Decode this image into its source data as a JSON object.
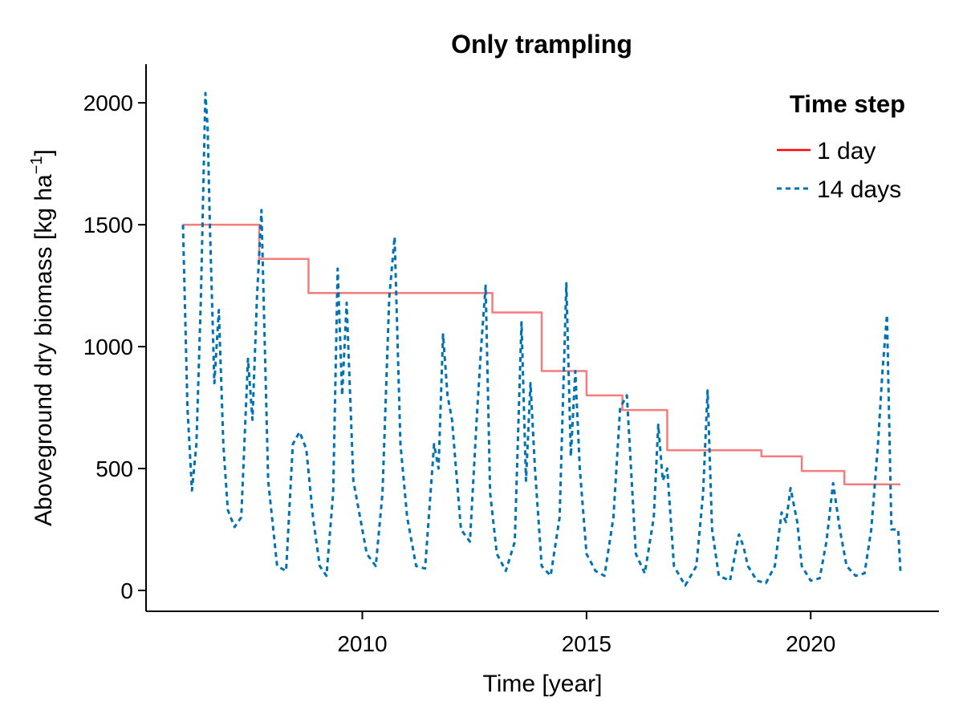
{
  "chart_data": {
    "type": "line",
    "title": "Only trampling",
    "xlabel": "Time [year]",
    "ylabel_main": "Aboveground dry biomass [kg ha",
    "ylabel_sup": "−1",
    "ylabel_end": "]",
    "xlim": [
      2006.0,
      2022.0
    ],
    "ylim": [
      0,
      2050
    ],
    "x_ticks": [
      2010,
      2015,
      2020
    ],
    "y_ticks": [
      0,
      500,
      1000,
      1500,
      2000
    ],
    "legend": {
      "title": "Time step",
      "position": "top-right"
    },
    "series": [
      {
        "name": "1 day",
        "style": "solid",
        "color": "#f47c7c",
        "legend_color": "#ff0000",
        "step": true,
        "x": [
          2006.0,
          2007.7,
          2008.8,
          2012.9,
          2014.0,
          2015.0,
          2015.8,
          2016.8,
          2018.9,
          2019.8,
          2020.75,
          2022.0
        ],
        "y": [
          1500,
          1360,
          1220,
          1140,
          900,
          800,
          740,
          575,
          550,
          490,
          435,
          435
        ]
      },
      {
        "name": "14 days",
        "style": "dashed",
        "color": "#0072b2",
        "legend_color": "#0072b2",
        "step": false,
        "x": [
          2006.0,
          2006.1,
          2006.2,
          2006.3,
          2006.4,
          2006.5,
          2006.55,
          2006.6,
          2006.7,
          2006.8,
          2006.9,
          2007.0,
          2007.15,
          2007.3,
          2007.45,
          2007.55,
          2007.65,
          2007.75,
          2007.9,
          2008.1,
          2008.3,
          2008.45,
          2008.6,
          2008.75,
          2008.9,
          2009.05,
          2009.2,
          2009.35,
          2009.45,
          2009.55,
          2009.65,
          2009.8,
          2009.95,
          2010.1,
          2010.3,
          2010.45,
          2010.6,
          2010.72,
          2010.85,
          2011.0,
          2011.2,
          2011.4,
          2011.6,
          2011.7,
          2011.8,
          2011.9,
          2012.0,
          2012.2,
          2012.4,
          2012.55,
          2012.65,
          2012.75,
          2012.85,
          2013.0,
          2013.2,
          2013.4,
          2013.55,
          2013.65,
          2013.75,
          2013.85,
          2014.0,
          2014.2,
          2014.4,
          2014.55,
          2014.65,
          2014.75,
          2014.85,
          2015.0,
          2015.2,
          2015.4,
          2015.6,
          2015.75,
          2015.9,
          2016.1,
          2016.3,
          2016.5,
          2016.6,
          2016.7,
          2016.8,
          2016.95,
          2017.2,
          2017.45,
          2017.6,
          2017.7,
          2017.8,
          2017.95,
          2018.2,
          2018.4,
          2018.5,
          2018.6,
          2018.8,
          2019.0,
          2019.2,
          2019.35,
          2019.45,
          2019.55,
          2019.7,
          2019.8,
          2020.0,
          2020.2,
          2020.35,
          2020.5,
          2020.65,
          2020.8,
          2021.0,
          2021.2,
          2021.35,
          2021.5,
          2021.6,
          2021.7,
          2021.8,
          2021.95,
          2022.0
        ],
        "y": [
          1500,
          750,
          410,
          600,
          1200,
          2040,
          1900,
          1500,
          850,
          1150,
          600,
          330,
          260,
          300,
          950,
          700,
          1200,
          1560,
          450,
          100,
          80,
          600,
          650,
          580,
          300,
          100,
          60,
          400,
          1320,
          800,
          1180,
          450,
          300,
          150,
          100,
          400,
          1200,
          1450,
          600,
          300,
          100,
          90,
          600,
          500,
          1050,
          800,
          700,
          250,
          200,
          700,
          1000,
          1250,
          400,
          150,
          80,
          200,
          1100,
          450,
          850,
          500,
          100,
          60,
          300,
          1260,
          550,
          900,
          500,
          150,
          80,
          60,
          300,
          750,
          800,
          150,
          70,
          300,
          680,
          450,
          500,
          100,
          20,
          100,
          400,
          820,
          250,
          60,
          40,
          230,
          180,
          100,
          40,
          30,
          100,
          320,
          280,
          420,
          280,
          100,
          40,
          50,
          200,
          440,
          250,
          100,
          60,
          70,
          250,
          600,
          900,
          1130,
          250,
          250,
          80
        ]
      }
    ]
  }
}
